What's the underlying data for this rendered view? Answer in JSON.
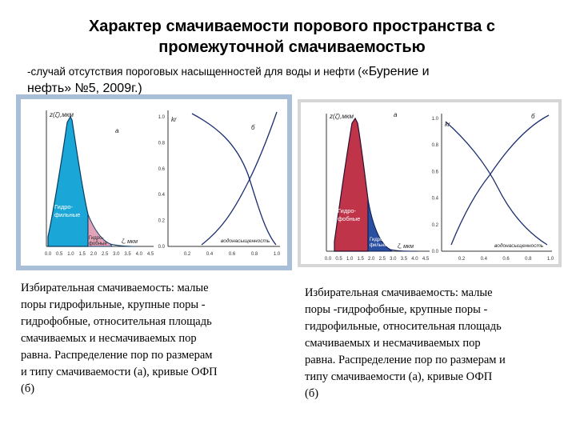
{
  "title": {
    "line1": "Характер смачиваемости порового пространства с",
    "line2": "промежуточной смачиваемостью"
  },
  "subtitle": {
    "part1": "-случай отсутствия пороговых насыщенностей для воды и нефти (",
    "part2": "«Бурение и",
    "line2": "нефть» №5, 2009г.)"
  },
  "figures": {
    "left": {
      "ylabel": "z(ζ),мкм",
      "panel_a": "а",
      "panel_b": "б",
      "kr_label": "kr",
      "region1": [
        "Гидро-",
        "фильные"
      ],
      "region2": [
        "Гидро-",
        "фобные"
      ],
      "xlabel_a": "ζ, мкм",
      "xlabel_b": "водонасыщенность",
      "xticks_a": [
        "0.0",
        "0.5",
        "1.0",
        "1.5",
        "2.0",
        "2.5",
        "3.0",
        "3.5",
        "4.0",
        "4.5"
      ],
      "xticks_b": [
        "0.2",
        "0.4",
        "0.6",
        "0.8",
        "1.0"
      ],
      "yticks_b": [
        "1.0",
        "0.8",
        "0.6",
        "0.4",
        "0.2",
        "0.0"
      ]
    },
    "right": {
      "ylabel": "z(ζ),мкм",
      "panel_a": "а",
      "panel_b": "б",
      "kr_label": "kr",
      "region1": [
        "Гидро-",
        "фобные"
      ],
      "region2": [
        "Гидро-",
        "фильные"
      ],
      "xlabel_a": "ζ, мкм",
      "xlabel_b": "водонасыщенность",
      "xticks_a": [
        "0.0",
        "0.5",
        "1.0",
        "1.5",
        "2.0",
        "2.5",
        "3.0",
        "3.5",
        "4.0",
        "4.5"
      ],
      "xticks_b": [
        "0.2",
        "0.4",
        "0.6",
        "0.8",
        "1.0"
      ],
      "yticks_b": [
        "1.0",
        "0.8",
        "0.6",
        "0.4",
        "0.2",
        "0.0"
      ]
    }
  },
  "captions": {
    "left": [
      "Избирательная смачиваемость: малые",
      "поры гидрофильные, крупные поры -",
      "гидрофобные, относительная площадь",
      "смачиваемых и несмачиваемых пор",
      "равна. Распределение пор по размерам",
      "и типу смачиваемости (а),  кривые ОФП",
      "(б)"
    ],
    "right": [
      "Избирательная смачиваемость: малые",
      "поры -гидрофобные, крупные поры -",
      "гидрофильные, относительная площадь",
      "смачиваемых и несмачиваемых пор",
      "равна. Распределение пор по размерам и",
      "типу смачиваемости (а), кривые ОФП",
      "(б)"
    ]
  },
  "colors": {
    "hydrophilic_left": "#1aa7d8",
    "hydrophobic_left": "#e2a2b8",
    "hydrophobic_right": "#c0344a",
    "hydrophilic_right": "#2b4fa0",
    "frame_left": "#a9bfd8",
    "frame_right": "#d6d6d6"
  }
}
